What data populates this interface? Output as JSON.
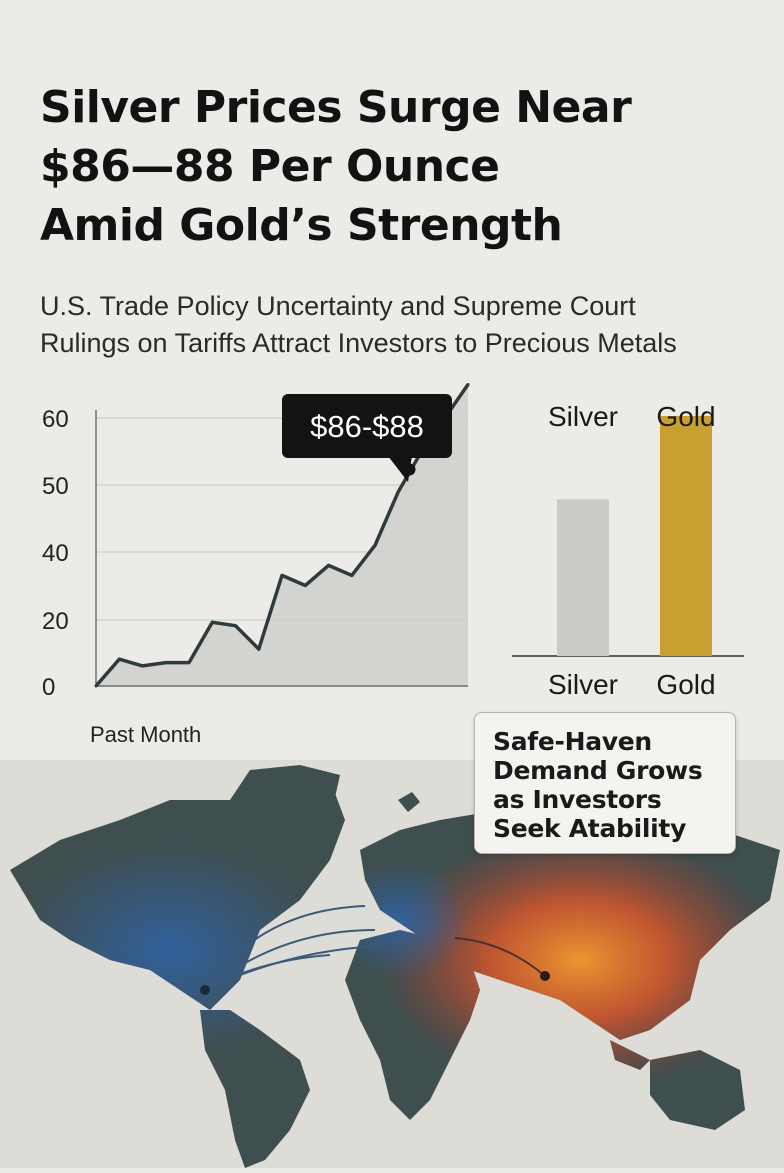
{
  "headline": {
    "line1": "Silver Prices Surge Near",
    "line2": "$86—88 Per Ounce",
    "line3": "Amid Gold’s Strength"
  },
  "subheadline": {
    "line1": "U.S. Trade Policy Uncertainty and Supreme Court",
    "line2": "Rulings on Tariffs Attract Investors to Precious Metals"
  },
  "callout": {
    "line1": "Safe-Haven",
    "line2": "Demand Grows",
    "line3": "as Investors",
    "line4": "Seek Atability"
  },
  "colors": {
    "background": "#ecebe7",
    "line": "#2f3a3c",
    "area": "#cfcfcb",
    "silver_bar": "#cbcbc6",
    "gold_bar": "#c8a032",
    "tooltip": "#131313",
    "map_land": "#3f4e4e",
    "map_sea": "#dddcd7",
    "heat_orange": "#e8702a",
    "heat_blue": "#2f63a4"
  },
  "chart_data": [
    {
      "type": "area",
      "title": "",
      "xlabel": "Past Month",
      "ylabel": "",
      "y_ticks": [
        "0",
        "20",
        "40",
        "50",
        "60"
      ],
      "x": [
        0,
        1,
        2,
        3,
        4,
        5,
        6,
        7,
        8,
        9,
        10,
        11,
        12,
        13,
        14,
        15,
        16
      ],
      "values": [
        0,
        8,
        6,
        7,
        7,
        19,
        18,
        11,
        33,
        30,
        36,
        33,
        41,
        49,
        55,
        60,
        65
      ],
      "annotation": {
        "text": "$86-$88",
        "point_index": 14
      },
      "grid": true
    },
    {
      "type": "bar",
      "title": "",
      "categories": [
        "Silver",
        "Gold"
      ],
      "top_labels": [
        "Silver",
        "Gold"
      ],
      "values": [
        49,
        75
      ],
      "ylim": [
        0,
        80
      ],
      "grid": false
    }
  ]
}
